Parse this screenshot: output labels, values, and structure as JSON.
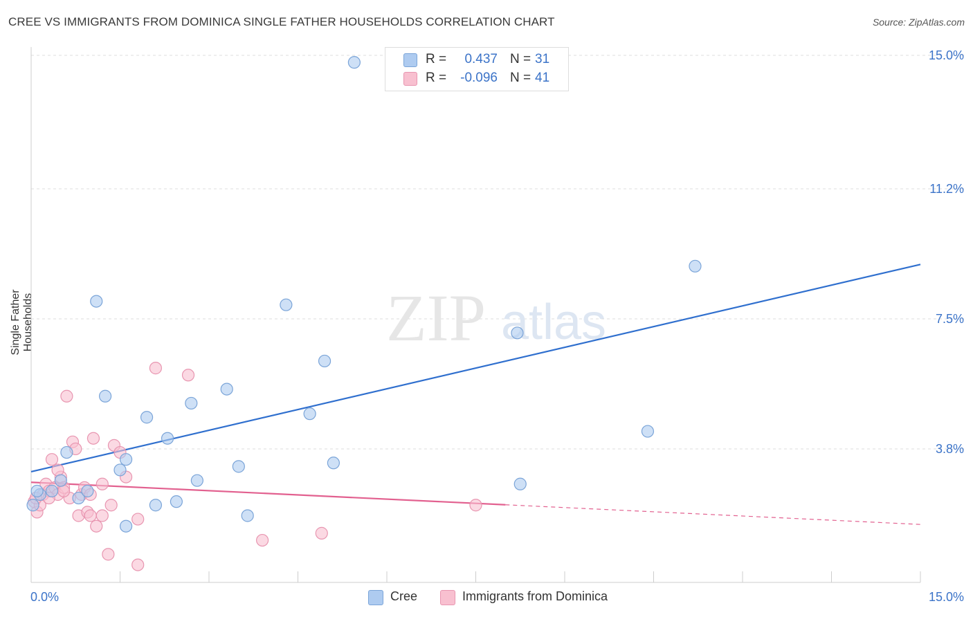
{
  "header": {
    "title": "CREE VS IMMIGRANTS FROM DOMINICA SINGLE FATHER HOUSEHOLDS CORRELATION CHART",
    "source": "Source: ZipAtlas.com"
  },
  "watermark": {
    "zip": "ZIP",
    "atlas": "atlas"
  },
  "legend_top": [
    {
      "r_label": "R =",
      "r_value": "0.437",
      "n_label": "N =",
      "n_value": "31"
    },
    {
      "r_label": "R =",
      "r_value": "-0.096",
      "n_label": "N =",
      "n_value": "41"
    }
  ],
  "legend_bottom": [
    "Cree",
    "Immigrants from Dominica"
  ],
  "colors": {
    "cree_fill": "#aecbf0",
    "cree_stroke": "#7aa4d8",
    "cree_line": "#2f6fce",
    "dom_fill": "#f8c0d0",
    "dom_stroke": "#e895b0",
    "dom_line": "#e2608f",
    "tick_label": "#3b73c8",
    "grid": "#dcdcdc"
  },
  "chart_data": {
    "type": "scatter",
    "ylabel": "Single Father Households",
    "xlabel": "",
    "xlim": [
      0,
      15
    ],
    "ylim": [
      0,
      15
    ],
    "x_tick_labels": [
      "0.0%",
      "15.0%"
    ],
    "y_ticks": [
      3.8,
      7.5,
      11.2,
      15.0
    ],
    "y_tick_labels": [
      "3.8%",
      "7.5%",
      "11.2%",
      "15.0%"
    ],
    "grid": true,
    "series": [
      {
        "name": "Cree",
        "points": [
          [
            0.03,
            2.2
          ],
          [
            0.15,
            2.5
          ],
          [
            0.35,
            2.6
          ],
          [
            0.5,
            2.9
          ],
          [
            0.6,
            3.7
          ],
          [
            0.8,
            2.4
          ],
          [
            0.95,
            2.6
          ],
          [
            1.1,
            8.0
          ],
          [
            1.25,
            5.3
          ],
          [
            1.5,
            3.2
          ],
          [
            1.6,
            3.5
          ],
          [
            1.6,
            1.6
          ],
          [
            1.95,
            4.7
          ],
          [
            2.1,
            2.2
          ],
          [
            2.3,
            4.1
          ],
          [
            2.45,
            2.3
          ],
          [
            2.7,
            5.1
          ],
          [
            2.8,
            2.9
          ],
          [
            3.3,
            5.5
          ],
          [
            3.5,
            3.3
          ],
          [
            3.65,
            1.9
          ],
          [
            4.3,
            7.9
          ],
          [
            4.7,
            4.8
          ],
          [
            4.95,
            6.3
          ],
          [
            5.1,
            3.4
          ],
          [
            5.45,
            14.8
          ],
          [
            8.2,
            7.1
          ],
          [
            8.25,
            2.8
          ],
          [
            10.4,
            4.3
          ],
          [
            11.2,
            9.0
          ],
          [
            0.1,
            2.6
          ]
        ]
      },
      {
        "name": "Immigrants from Dominica",
        "points": [
          [
            0.05,
            2.3
          ],
          [
            0.1,
            2.0
          ],
          [
            0.15,
            2.2
          ],
          [
            0.2,
            2.5
          ],
          [
            0.25,
            2.8
          ],
          [
            0.3,
            2.6
          ],
          [
            0.35,
            3.5
          ],
          [
            0.4,
            2.7
          ],
          [
            0.45,
            2.5
          ],
          [
            0.5,
            3.0
          ],
          [
            0.55,
            2.7
          ],
          [
            0.6,
            5.3
          ],
          [
            0.65,
            2.4
          ],
          [
            0.7,
            4.0
          ],
          [
            0.75,
            3.8
          ],
          [
            0.8,
            1.9
          ],
          [
            0.85,
            2.5
          ],
          [
            0.9,
            2.7
          ],
          [
            0.95,
            2.0
          ],
          [
            1.0,
            1.9
          ],
          [
            1.05,
            4.1
          ],
          [
            1.1,
            1.6
          ],
          [
            1.2,
            1.9
          ],
          [
            1.3,
            0.8
          ],
          [
            1.35,
            2.2
          ],
          [
            1.4,
            3.9
          ],
          [
            1.5,
            3.7
          ],
          [
            1.6,
            3.0
          ],
          [
            1.8,
            0.5
          ],
          [
            1.8,
            1.8
          ],
          [
            2.1,
            6.1
          ],
          [
            2.65,
            5.9
          ],
          [
            3.9,
            1.2
          ],
          [
            4.9,
            1.4
          ],
          [
            7.5,
            2.2
          ],
          [
            0.45,
            3.2
          ],
          [
            0.08,
            2.4
          ],
          [
            0.55,
            2.6
          ],
          [
            1.0,
            2.5
          ],
          [
            0.3,
            2.4
          ],
          [
            1.2,
            2.8
          ]
        ]
      }
    ],
    "trend_lines": [
      {
        "series": "Cree",
        "from": [
          0,
          3.15
        ],
        "to": [
          15,
          9.05
        ],
        "dashed_from": null
      },
      {
        "series": "Immigrants from Dominica",
        "from": [
          0,
          2.85
        ],
        "to": [
          15,
          1.65
        ],
        "solid_until_x": 8.0
      }
    ]
  }
}
